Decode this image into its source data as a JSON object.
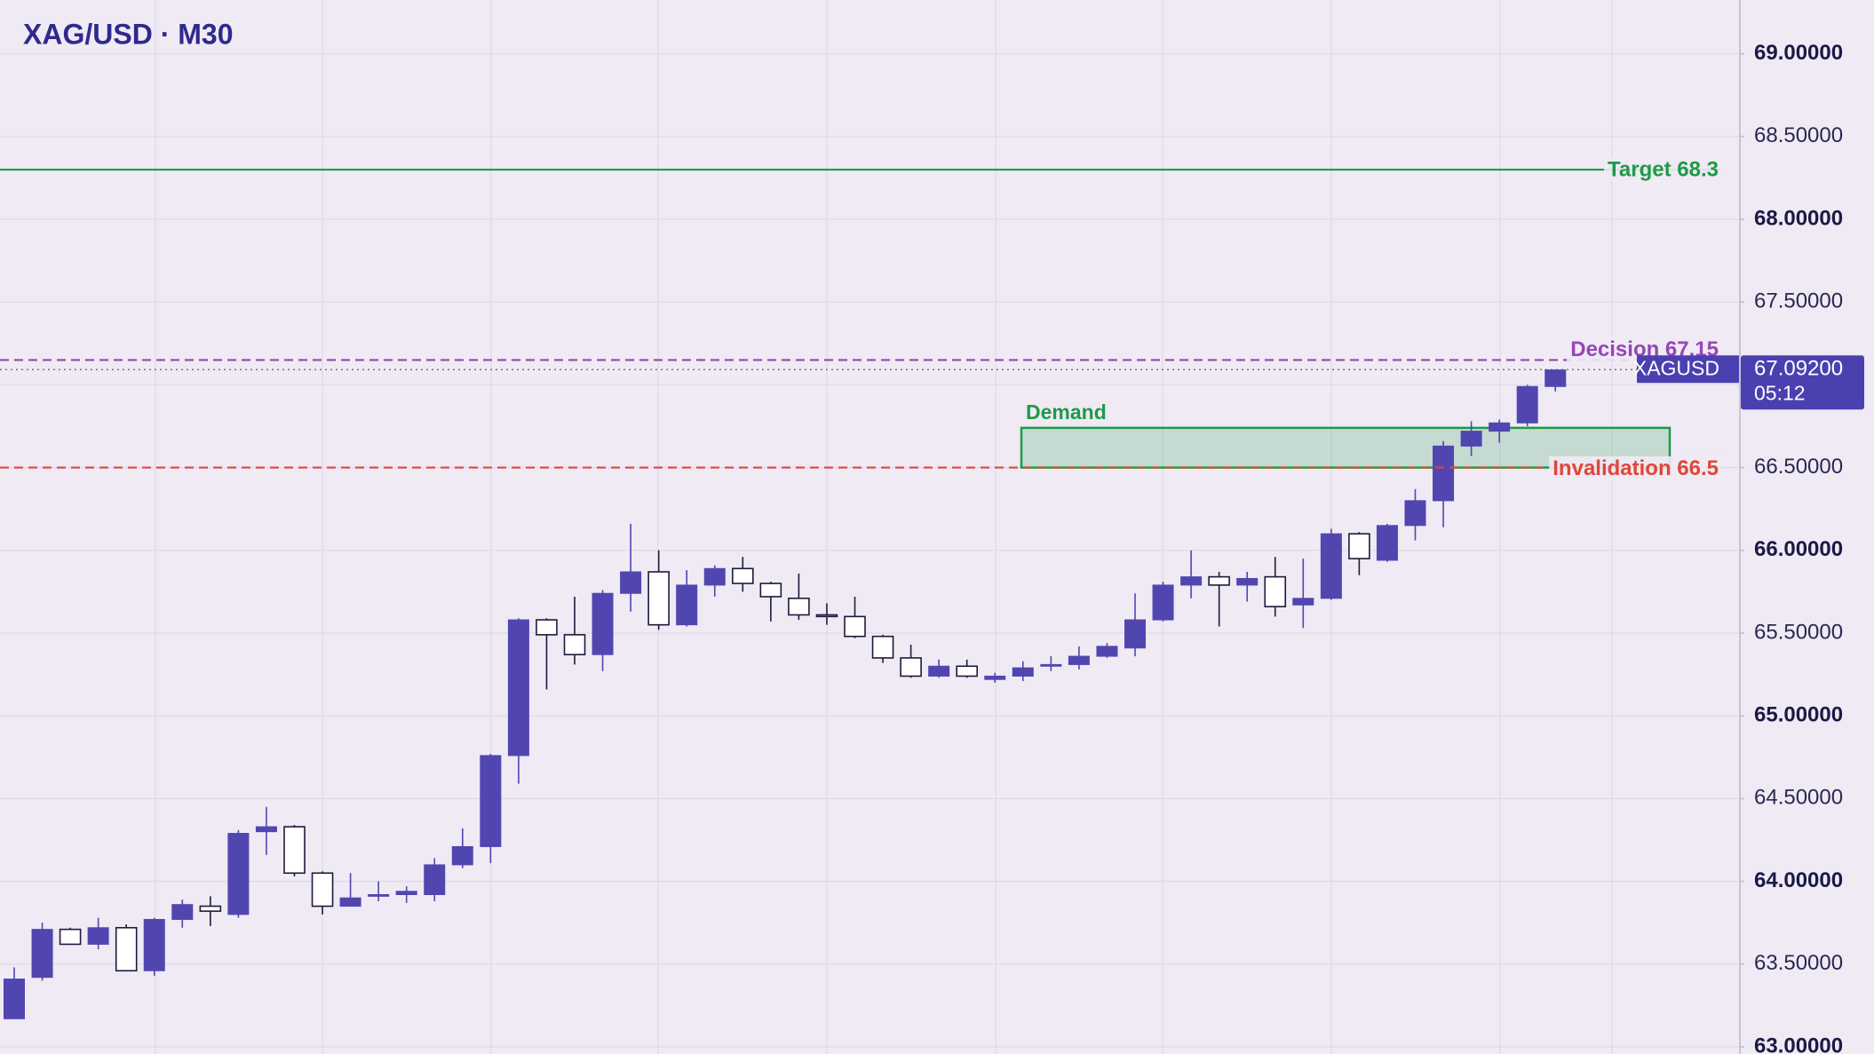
{
  "chart_data": {
    "type": "candlestick",
    "title": "XAG/USD · M30",
    "up_color": "#5146b0",
    "down_color": "#ffffff",
    "outline_color": "#1e1a3c",
    "grid": true,
    "ylim": [
      62.957,
      69.325
    ],
    "yticks": [
      {
        "value": 63,
        "label": "63.00000"
      },
      {
        "value": 63.5,
        "label": "63.50000"
      },
      {
        "value": 64,
        "label": "64.00000"
      },
      {
        "value": 64.5,
        "label": "64.50000"
      },
      {
        "value": 65,
        "label": "65.00000"
      },
      {
        "value": 65.5,
        "label": "65.50000"
      },
      {
        "value": 66,
        "label": "66.00000"
      },
      {
        "value": 66.5,
        "label": "66.50000"
      },
      {
        "value": 67,
        "label": "67.00000"
      },
      {
        "value": 67.5,
        "label": "67.50000"
      },
      {
        "value": 68,
        "label": "68.00000"
      },
      {
        "value": 68.5,
        "label": "68.50000"
      },
      {
        "value": 69,
        "label": "69.00000"
      }
    ],
    "open": [
      63.17,
      63.42,
      63.71,
      63.62,
      63.72,
      63.46,
      63.77,
      63.85,
      63.8,
      64.3,
      64.33,
      64.05,
      63.85,
      63.91,
      63.92,
      63.92,
      64.1,
      64.21,
      64.76,
      65.58,
      65.49,
      65.37,
      65.74,
      65.87,
      65.55,
      65.79,
      65.89,
      65.8,
      65.71,
      65.61,
      65.6,
      65.48,
      65.35,
      65.24,
      65.3,
      65.22,
      65.24,
      65.3,
      65.31,
      65.36,
      65.41,
      65.58,
      65.79,
      65.84,
      65.79,
      65.84,
      65.67,
      65.71,
      66.1,
      65.94,
      66.15,
      66.3,
      66.63,
      66.72,
      66.77,
      66.99
    ],
    "high": [
      63.48,
      63.75,
      63.72,
      63.78,
      63.74,
      63.78,
      63.89,
      63.91,
      64.31,
      64.45,
      64.34,
      64.06,
      64.05,
      64.0,
      63.97,
      64.14,
      64.32,
      64.77,
      65.59,
      65.59,
      65.72,
      65.76,
      66.16,
      66.0,
      65.88,
      65.91,
      65.96,
      65.81,
      65.86,
      65.68,
      65.72,
      65.49,
      65.43,
      65.34,
      65.34,
      65.26,
      65.33,
      65.36,
      65.42,
      65.44,
      65.74,
      65.81,
      66.0,
      65.87,
      65.87,
      65.96,
      65.95,
      66.13,
      66.11,
      66.16,
      66.37,
      66.66,
      66.78,
      66.79,
      67.0,
      67.09
    ],
    "low": [
      63.17,
      63.4,
      63.62,
      63.59,
      63.46,
      63.43,
      63.72,
      63.73,
      63.78,
      64.16,
      64.03,
      63.8,
      63.85,
      63.88,
      63.87,
      63.88,
      64.08,
      64.11,
      64.59,
      65.16,
      65.31,
      65.27,
      65.63,
      65.52,
      65.54,
      65.72,
      65.75,
      65.57,
      65.58,
      65.55,
      65.47,
      65.32,
      65.23,
      65.23,
      65.23,
      65.2,
      65.21,
      65.27,
      65.28,
      65.35,
      65.36,
      65.57,
      65.71,
      65.54,
      65.69,
      65.6,
      65.53,
      65.7,
      65.85,
      65.93,
      66.06,
      66.14,
      66.57,
      66.65,
      66.75,
      66.96
    ],
    "close": [
      63.41,
      63.71,
      63.62,
      63.72,
      63.46,
      63.77,
      63.86,
      63.82,
      64.29,
      64.33,
      64.05,
      63.85,
      63.9,
      63.92,
      63.94,
      64.1,
      64.21,
      64.76,
      65.58,
      65.49,
      65.37,
      65.74,
      65.87,
      65.55,
      65.79,
      65.89,
      65.8,
      65.72,
      65.61,
      65.6,
      65.48,
      65.35,
      65.24,
      65.3,
      65.24,
      65.24,
      65.29,
      65.31,
      65.36,
      65.42,
      65.58,
      65.79,
      65.84,
      65.79,
      65.83,
      65.66,
      65.71,
      66.1,
      65.95,
      66.15,
      66.3,
      66.63,
      66.72,
      66.77,
      66.99,
      67.09
    ],
    "levels": [
      {
        "label": "Target 68.3",
        "value": 68.3,
        "color": "#1e9a48",
        "style": "solid"
      },
      {
        "label": "Decision 67.15",
        "value": 67.15,
        "color": "#9446b8",
        "style": "dashed"
      },
      {
        "label": "Invalidation 66.5",
        "value": 66.5,
        "color": "#e0463a",
        "style": "dashed"
      }
    ],
    "zone": {
      "label": "Demand",
      "low": 66.5,
      "high": 66.74,
      "color": "#1e9a48"
    },
    "last_price": {
      "symbol": "XAGUSD",
      "value": 67.092,
      "label": "67.09200",
      "countdown": "05:12",
      "color": "#4b40b0"
    }
  }
}
